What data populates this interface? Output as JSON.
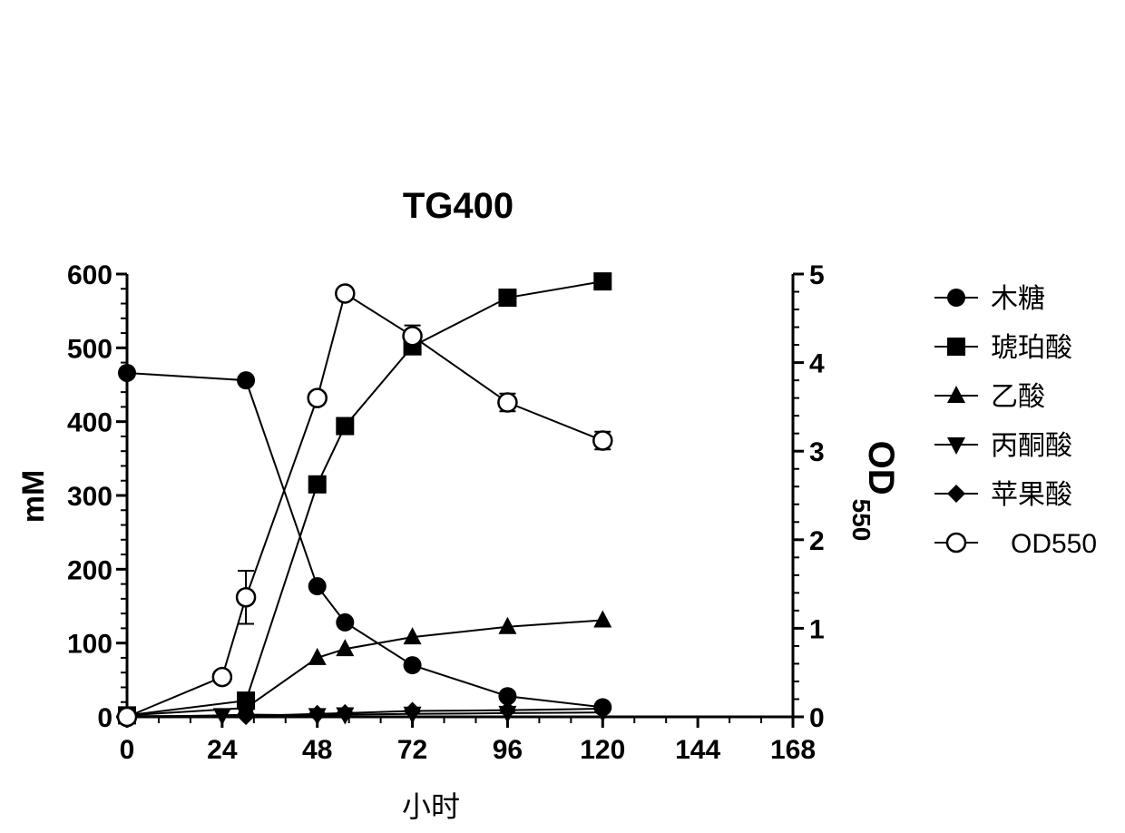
{
  "chart_data": {
    "type": "line",
    "title": "TG400",
    "xlabel": "小时",
    "ylabel": "mM",
    "y2label": "OD",
    "y2label_sub": "550",
    "xlim": [
      0,
      168
    ],
    "ylim": [
      0,
      600
    ],
    "y2lim": [
      0,
      5
    ],
    "xticks": [
      "0",
      "24",
      "48",
      "72",
      "96",
      "120",
      "144",
      "168"
    ],
    "yticks": [
      "0",
      "100",
      "200",
      "300",
      "400",
      "500",
      "600"
    ],
    "y2ticks": [
      "0",
      "1",
      "2",
      "3",
      "4",
      "5"
    ],
    "legend_position": "right",
    "series": [
      {
        "name": "木糖",
        "axis": "left",
        "marker": "circle-filled",
        "x": [
          0,
          30,
          48,
          55,
          72,
          96,
          120
        ],
        "y": [
          466,
          456,
          177,
          128,
          70,
          28,
          13
        ]
      },
      {
        "name": "琥珀酸",
        "axis": "left",
        "marker": "square-filled",
        "x": [
          0,
          30,
          48,
          55,
          72,
          96,
          120
        ],
        "y": [
          2,
          22,
          315,
          394,
          502,
          568,
          590
        ]
      },
      {
        "name": "乙酸",
        "axis": "left",
        "marker": "triangle-up-filled",
        "x": [
          0,
          30,
          48,
          55,
          72,
          96,
          120
        ],
        "y": [
          2,
          12,
          80,
          92,
          108,
          122,
          131
        ]
      },
      {
        "name": "丙酮酸",
        "axis": "left",
        "marker": "triangle-down-filled",
        "x": [
          0,
          24,
          30,
          48,
          55,
          72,
          96,
          120
        ],
        "y": [
          0,
          2,
          3,
          2,
          3,
          4,
          5,
          6
        ]
      },
      {
        "name": "苹果酸",
        "axis": "left",
        "marker": "diamond-filled",
        "x": [
          0,
          30,
          48,
          55,
          72,
          96,
          120
        ],
        "y": [
          1,
          1,
          4,
          5,
          8,
          9,
          11
        ]
      },
      {
        "name": "OD550",
        "axis": "right",
        "marker": "circle-open",
        "x": [
          0,
          24,
          30,
          48,
          55,
          72,
          96,
          120
        ],
        "y": [
          0,
          0.45,
          1.35,
          3.6,
          4.78,
          4.3,
          3.55,
          3.12
        ],
        "err": [
          0,
          0,
          0.3,
          0,
          0,
          0.12,
          0.1,
          0.1
        ]
      }
    ]
  }
}
